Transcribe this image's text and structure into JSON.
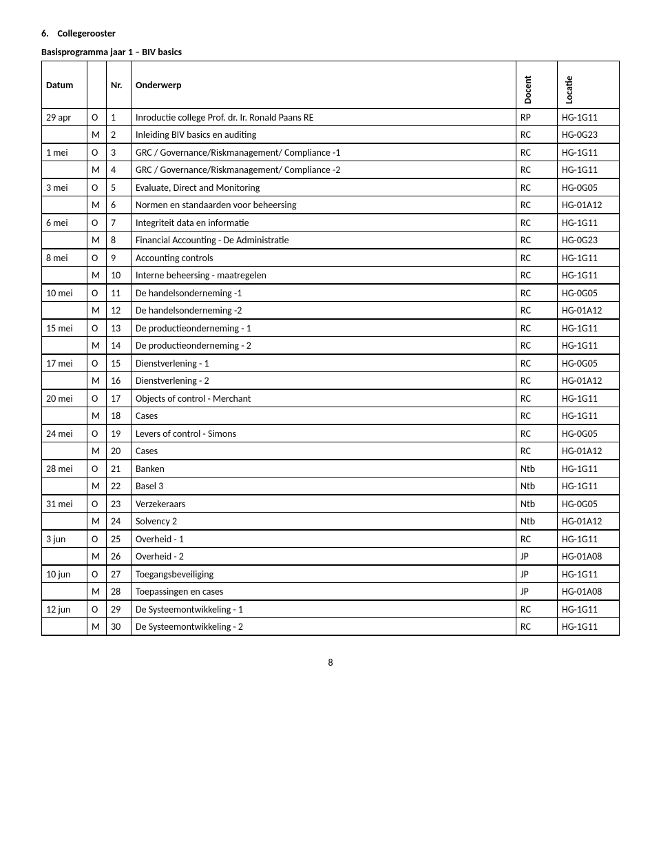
{
  "heading_nr": "6.",
  "heading_title": "Collegerooster",
  "subheading": "Basisprogramma jaar 1 – BIV basics",
  "columns": {
    "date": "Datum",
    "nr": "Nr.",
    "subject": "Onderwerp",
    "docent": "Docent",
    "locatie": "Locatie"
  },
  "rows": [
    {
      "date": "29 apr",
      "om": "O",
      "nr": "1",
      "subj": "Inroductie college Prof. dr. Ir. Ronald Paans RE",
      "doc": "RP",
      "loc": "HG-1G11",
      "blockend": false
    },
    {
      "date": "",
      "om": "M",
      "nr": "2",
      "subj": "Inleiding BIV basics en auditing",
      "doc": "RC",
      "loc": "HG-0G23",
      "blockend": true
    },
    {
      "date": "1 mei",
      "om": "O",
      "nr": "3",
      "subj": "GRC / Governance/Riskmanagement/ Compliance -1",
      "doc": "RC",
      "loc": "HG-1G11",
      "blockend": false
    },
    {
      "date": "",
      "om": "M",
      "nr": "4",
      "subj": "GRC / Governance/Riskmanagement/ Compliance -2",
      "doc": "RC",
      "loc": "HG-1G11",
      "blockend": true
    },
    {
      "date": "3 mei",
      "om": "O",
      "nr": "5",
      "subj": "Evaluate, Direct and Monitoring",
      "doc": "RC",
      "loc": "HG-0G05",
      "blockend": false
    },
    {
      "date": "",
      "om": "M",
      "nr": "6",
      "subj": "Normen en standaarden voor beheersing",
      "doc": "RC",
      "loc": "HG-01A12",
      "blockend": true
    },
    {
      "date": "6 mei",
      "om": "O",
      "nr": "7",
      "subj": "Integriteit data en informatie",
      "doc": "RC",
      "loc": "HG-1G11",
      "blockend": false
    },
    {
      "date": "",
      "om": "M",
      "nr": "8",
      "subj": "Financial Accounting - De Administratie",
      "doc": "RC",
      "loc": "HG-0G23",
      "blockend": true
    },
    {
      "date": "8 mei",
      "om": "O",
      "nr": "9",
      "subj": "Accounting controls",
      "doc": "RC",
      "loc": "HG-1G11",
      "blockend": false
    },
    {
      "date": "",
      "om": "M",
      "nr": "10",
      "subj": "Interne beheersing - maatregelen",
      "doc": "RC",
      "loc": "HG-1G11",
      "blockend": true
    },
    {
      "date": "10 mei",
      "om": "O",
      "nr": "11",
      "subj": "De handelsonderneming -1",
      "doc": "RC",
      "loc": "HG-0G05",
      "blockend": false
    },
    {
      "date": "",
      "om": "M",
      "nr": "12",
      "subj": "De handelsonderneming -2",
      "doc": "RC",
      "loc": "HG-01A12",
      "blockend": true
    },
    {
      "date": "15 mei",
      "om": "O",
      "nr": "13",
      "subj": "De productieonderneming - 1",
      "doc": "RC",
      "loc": "HG-1G11",
      "blockend": false
    },
    {
      "date": "",
      "om": "M",
      "nr": "14",
      "subj": "De productieonderneming - 2",
      "doc": "RC",
      "loc": "HG-1G11",
      "blockend": true
    },
    {
      "date": "17 mei",
      "om": "O",
      "nr": "15",
      "subj": "Dienstverlening  - 1",
      "doc": "RC",
      "loc": "HG-0G05",
      "blockend": false
    },
    {
      "date": "",
      "om": "M",
      "nr": "16",
      "subj": "Dienstverlening  - 2",
      "doc": "RC",
      "loc": "HG-01A12",
      "blockend": true
    },
    {
      "date": "20 mei",
      "om": "O",
      "nr": "17",
      "subj": "Objects of control - Merchant",
      "doc": "RC",
      "loc": "HG-1G11",
      "blockend": false
    },
    {
      "date": "",
      "om": "M",
      "nr": "18",
      "subj": "Cases",
      "doc": "RC",
      "loc": "HG-1G11",
      "blockend": true
    },
    {
      "date": "24 mei",
      "om": "O",
      "nr": "19",
      "subj": "Levers of control - Simons",
      "doc": "RC",
      "loc": "HG-0G05",
      "blockend": false
    },
    {
      "date": "",
      "om": "M",
      "nr": "20",
      "subj": "Cases",
      "doc": "RC",
      "loc": "HG-01A12",
      "blockend": true
    },
    {
      "date": "28 mei",
      "om": "O",
      "nr": "21",
      "subj": "Banken",
      "doc": "Ntb",
      "loc": "HG-1G11",
      "blockend": false
    },
    {
      "date": "",
      "om": "M",
      "nr": "22",
      "subj": "Basel 3",
      "doc": "Ntb",
      "loc": "HG-1G11",
      "blockend": true
    },
    {
      "date": "31 mei",
      "om": "O",
      "nr": "23",
      "subj": "Verzekeraars",
      "doc": "Ntb",
      "loc": "HG-0G05",
      "blockend": false
    },
    {
      "date": "",
      "om": "M",
      "nr": "24",
      "subj": "Solvency 2",
      "doc": "Ntb",
      "loc": "HG-01A12",
      "blockend": true
    },
    {
      "date": "3 jun",
      "om": "O",
      "nr": "25",
      "subj": "Overheid - 1",
      "doc": "RC",
      "loc": "HG-1G11",
      "blockend": false
    },
    {
      "date": "",
      "om": "M",
      "nr": "26",
      "subj": "Overheid - 2",
      "doc": "JP",
      "loc": "HG-01A08",
      "blockend": true
    },
    {
      "date": "10 jun",
      "om": "O",
      "nr": "27",
      "subj": "Toegangsbeveiliging",
      "doc": "JP",
      "loc": "HG-1G11",
      "blockend": false
    },
    {
      "date": "",
      "om": "M",
      "nr": "28",
      "subj": "Toepassingen en cases",
      "doc": "JP",
      "loc": "HG-01A08",
      "blockend": true
    },
    {
      "date": "12 jun",
      "om": "O",
      "nr": "29",
      "subj": "De Systeemontwikkeling - 1",
      "doc": "RC",
      "loc": "HG-1G11",
      "blockend": false
    },
    {
      "date": "",
      "om": "M",
      "nr": "30",
      "subj": "De Systeemontwikkeling - 2",
      "doc": "RC",
      "loc": "HG-1G11",
      "blockend": true
    }
  ],
  "page_number": "8"
}
